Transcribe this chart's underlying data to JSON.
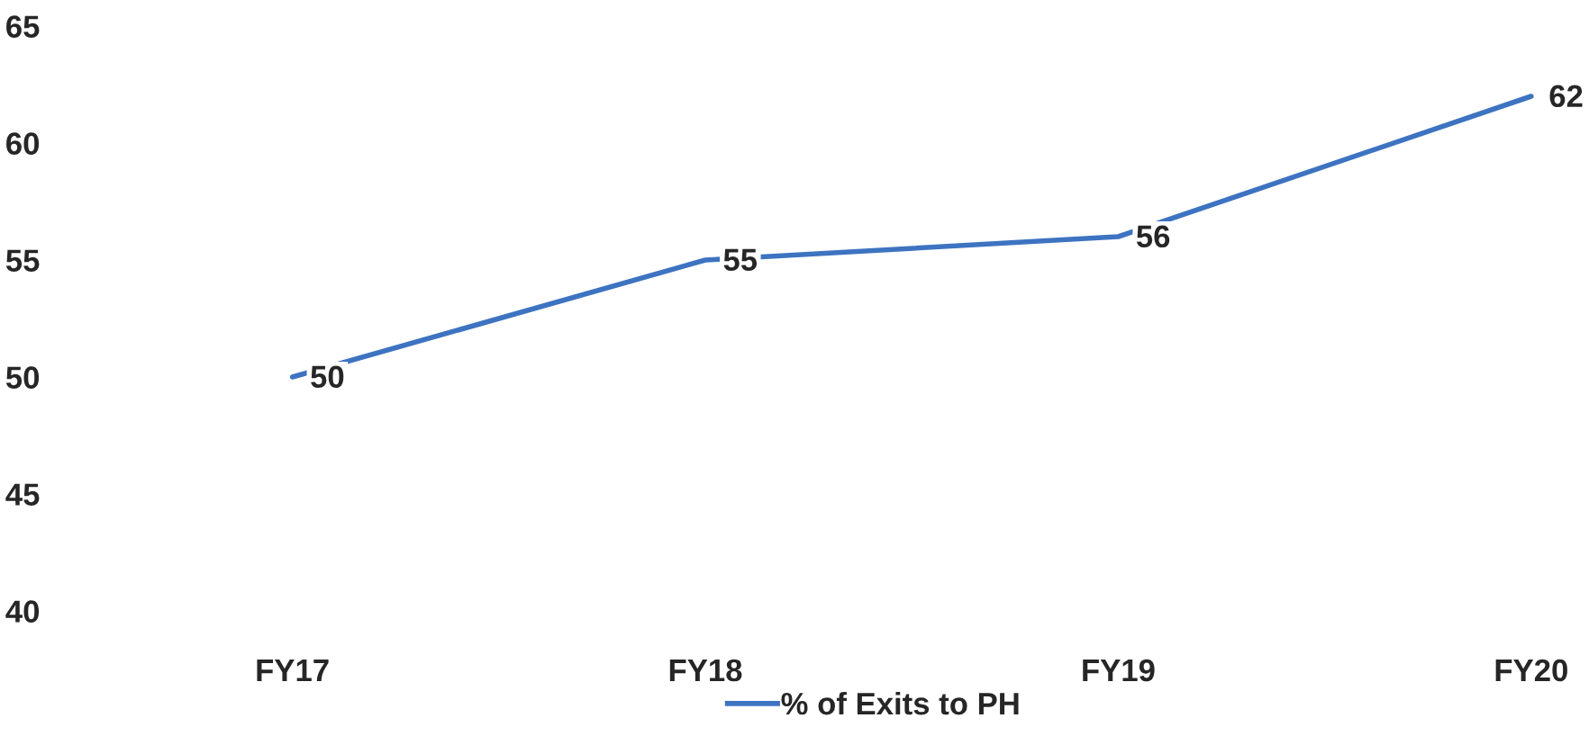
{
  "chart_data": {
    "type": "line",
    "categories": [
      "FY17",
      "FY18",
      "FY19",
      "FY20"
    ],
    "series": [
      {
        "name": "% of Exits to PH",
        "color": "#3d73c1",
        "values": [
          50,
          55,
          56,
          62
        ]
      }
    ],
    "ylim": [
      40,
      65
    ],
    "yticks": [
      40,
      45,
      50,
      55,
      60,
      65
    ],
    "data_labels": true,
    "legend": "bottom",
    "grid": false,
    "marker": "none",
    "line_style": "solid"
  }
}
